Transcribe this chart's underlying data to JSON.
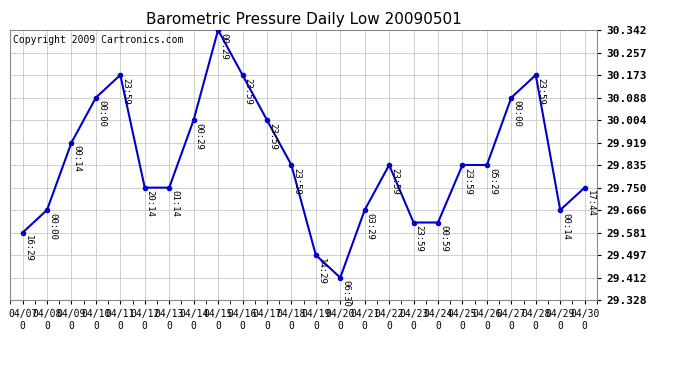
{
  "title": "Barometric Pressure Daily Low 20090501",
  "copyright": "Copyright 2009 Cartronics.com",
  "x_labels": [
    "04/07",
    "04/08",
    "04/09",
    "04/10",
    "04/11",
    "04/12",
    "04/13",
    "04/14",
    "04/15",
    "04/16",
    "04/17",
    "04/18",
    "04/19",
    "04/20",
    "04/21",
    "04/22",
    "04/23",
    "04/24",
    "04/25",
    "04/26",
    "04/27",
    "04/28",
    "04/29",
    "04/30"
  ],
  "y_values": [
    29.581,
    29.666,
    29.919,
    30.088,
    30.173,
    29.75,
    29.75,
    30.004,
    30.342,
    30.173,
    30.004,
    29.835,
    29.497,
    29.412,
    29.666,
    29.835,
    29.619,
    29.619,
    29.835,
    29.835,
    30.088,
    30.173,
    29.666,
    29.75
  ],
  "annotations": [
    "16:29",
    "00:00",
    "00:14",
    "00:00",
    "23:59",
    "20:14",
    "01:14",
    "00:29",
    "00:29",
    "23:59",
    "23:59",
    "23:59",
    "14:29",
    "06:30",
    "03:29",
    "23:59",
    "23:59",
    "00:59",
    "23:59",
    "05:29",
    "00:00",
    "23:59",
    "00:14",
    "17:44"
  ],
  "ylim": [
    29.328,
    30.342
  ],
  "y_ticks": [
    29.328,
    29.412,
    29.497,
    29.581,
    29.666,
    29.75,
    29.835,
    29.919,
    30.004,
    30.088,
    30.173,
    30.257,
    30.342
  ],
  "line_color": "#0000cc",
  "marker_color": "#0000cc",
  "bg_color": "#ffffff",
  "plot_bg_color": "#ffffff",
  "grid_color": "#c8c8c8",
  "title_fontsize": 11,
  "copyright_fontsize": 7,
  "annotation_fontsize": 6.5,
  "tick_fontsize": 8,
  "xtick_fontsize": 7
}
